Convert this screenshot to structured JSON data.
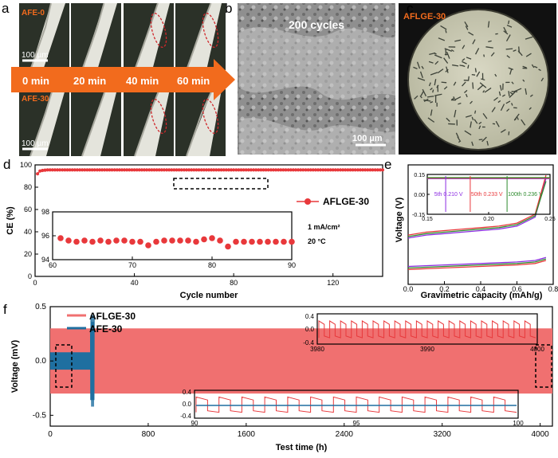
{
  "panels": {
    "a": {
      "label": "a",
      "sample_top": "AFE-0",
      "sample_bottom": "AFE-30",
      "scale_top": "100 µm",
      "scale_bottom": "100 µm",
      "times": [
        "0 min",
        "20 min",
        "40 min",
        "60 min"
      ],
      "arrow_color": "#f26b1d"
    },
    "b": {
      "label": "b",
      "caption": "200 cycles",
      "scale": "100 µm"
    },
    "c": {
      "label": "c",
      "caption": "AFLGE-30"
    }
  },
  "chart_data": [
    {
      "id": "d",
      "panel_label": "d",
      "type": "scatter",
      "xlabel": "Cycle number",
      "ylabel": "CE (%)",
      "xlim": [
        0,
        140
      ],
      "ylim": [
        0,
        100
      ],
      "xticks": [
        0,
        40,
        80,
        120
      ],
      "yticks": [
        0,
        20,
        40,
        60,
        80,
        100
      ],
      "legend": "AFLGE-30",
      "legend_position": "right",
      "color": "#e8383b",
      "series": [
        {
          "name": "AFLGE-30",
          "x_start": 1,
          "x_end": 140,
          "values_initial": [
            92,
            94.5,
            95.0,
            95.3
          ],
          "value_plateau": 95.5
        }
      ],
      "inset": {
        "xlim": [
          60,
          90
        ],
        "ylim": [
          94,
          98
        ],
        "xticks": [
          60,
          70,
          80,
          90
        ],
        "yticks": [
          94,
          96,
          98
        ],
        "annotations": [
          "1 mA/cm²",
          "20 °C"
        ],
        "x": [
          61,
          62,
          63,
          64,
          65,
          66,
          67,
          68,
          69,
          70,
          71,
          72,
          73,
          74,
          75,
          76,
          77,
          78,
          79,
          80,
          81,
          82,
          83,
          84,
          85,
          86,
          87,
          88,
          89,
          90
        ],
        "values": [
          95.8,
          95.6,
          95.5,
          95.6,
          95.5,
          95.6,
          95.5,
          95.6,
          95.6,
          95.5,
          95.5,
          95.2,
          95.5,
          95.6,
          95.6,
          95.6,
          95.6,
          95.5,
          95.7,
          95.8,
          95.6,
          95.1,
          95.5,
          95.5,
          95.5,
          95.5,
          95.5,
          95.5,
          95.5,
          95.5
        ]
      }
    },
    {
      "id": "e",
      "panel_label": "e",
      "type": "line",
      "xlabel": "Gravimetric capacity (mAh/g)",
      "ylabel": "Voltage (V)",
      "xlim": [
        0,
        0.8
      ],
      "ylim": [
        -0.25,
        0.55
      ],
      "xticks": [
        0.0,
        0.2,
        0.4,
        0.6,
        0.8
      ],
      "series": [
        {
          "name": "5th",
          "color": "#8b2be2",
          "charge": [
            [
              0,
              0.06
            ],
            [
              0.1,
              0.08
            ],
            [
              0.2,
              0.09
            ],
            [
              0.3,
              0.1
            ],
            [
              0.4,
              0.11
            ],
            [
              0.5,
              0.12
            ],
            [
              0.6,
              0.14
            ],
            [
              0.7,
              0.2
            ],
            [
              0.76,
              0.46
            ]
          ],
          "discharge": [
            [
              0,
              -0.13
            ],
            [
              0.2,
              -0.12
            ],
            [
              0.4,
              -0.11
            ],
            [
              0.6,
              -0.1
            ],
            [
              0.7,
              -0.09
            ],
            [
              0.76,
              -0.07
            ]
          ]
        },
        {
          "name": "50th",
          "color": "#e8383b",
          "charge": [
            [
              0,
              0.08
            ],
            [
              0.1,
              0.1
            ],
            [
              0.2,
              0.11
            ],
            [
              0.3,
              0.12
            ],
            [
              0.4,
              0.13
            ],
            [
              0.5,
              0.14
            ],
            [
              0.6,
              0.16
            ],
            [
              0.7,
              0.22
            ],
            [
              0.76,
              0.48
            ]
          ],
          "discharge": [
            [
              0,
              -0.15
            ],
            [
              0.2,
              -0.14
            ],
            [
              0.4,
              -0.13
            ],
            [
              0.6,
              -0.12
            ],
            [
              0.7,
              -0.11
            ],
            [
              0.76,
              -0.09
            ]
          ]
        },
        {
          "name": "100th",
          "color": "#2e8b2e",
          "charge": [
            [
              0,
              0.07
            ],
            [
              0.1,
              0.09
            ],
            [
              0.2,
              0.1
            ],
            [
              0.3,
              0.11
            ],
            [
              0.4,
              0.12
            ],
            [
              0.5,
              0.13
            ],
            [
              0.6,
              0.15
            ],
            [
              0.7,
              0.21
            ],
            [
              0.76,
              0.44
            ]
          ],
          "discharge": [
            [
              0,
              -0.14
            ],
            [
              0.2,
              -0.13
            ],
            [
              0.4,
              -0.12
            ],
            [
              0.6,
              -0.11
            ],
            [
              0.7,
              -0.1
            ],
            [
              0.76,
              -0.08
            ]
          ]
        }
      ],
      "inset": {
        "xlim": [
          0.15,
          0.25
        ],
        "ylim": [
          -0.15,
          0.15
        ],
        "xticks": [
          0.15,
          0.2,
          0.25
        ],
        "yticks": [
          0.15,
          0.0,
          -0.15
        ],
        "ytick_labels": [
          "0.15",
          "0.00",
          "-0.15"
        ],
        "annotations": [
          {
            "text": "5th 0.210 V",
            "color": "#8b2be2",
            "x": 0.155
          },
          {
            "text": "50th 0.233 V",
            "color": "#e8383b",
            "x": 0.185
          },
          {
            "text": "100th 0.236 V",
            "color": "#2e8b2e",
            "x": 0.215
          }
        ]
      }
    },
    {
      "id": "f",
      "panel_label": "f",
      "type": "line",
      "xlabel": "Test time (h)",
      "ylabel": "Voltage (mV)",
      "xlim": [
        0,
        4100
      ],
      "ylim": [
        -0.6,
        0.5
      ],
      "xticks": [
        0,
        800,
        1600,
        2400,
        3200,
        4000
      ],
      "yticks": [
        -0.5,
        0.0,
        0.5
      ],
      "ytick_labels": [
        "-0.5",
        "0.0",
        "0.5"
      ],
      "series": [
        {
          "name": "AFLGE-30",
          "color": "#f07070",
          "x_range": [
            0,
            4100
          ],
          "amplitude": 0.3
        },
        {
          "name": "AFE-30",
          "color": "#1f6fa0",
          "x_range": [
            0,
            360
          ],
          "amplitude": 0.08,
          "failure_at": 330
        }
      ],
      "inset_top": {
        "xlim": [
          3980,
          4000
        ],
        "ylim": [
          -0.4,
          0.4
        ],
        "xticks": [
          3980,
          3990,
          4000
        ],
        "yticks": [
          0.4,
          0.0,
          -0.4
        ],
        "ytick_labels": [
          "0.4",
          "0.0",
          "-0.4"
        ]
      },
      "inset_bottom": {
        "xlim": [
          90,
          100
        ],
        "ylim": [
          -0.4,
          0.4
        ],
        "xticks": [
          90,
          95,
          100
        ],
        "yticks": [
          0.4,
          0.0,
          -0.4
        ],
        "ytick_labels": [
          "0.4",
          "0.0",
          "-0.4"
        ]
      }
    }
  ]
}
